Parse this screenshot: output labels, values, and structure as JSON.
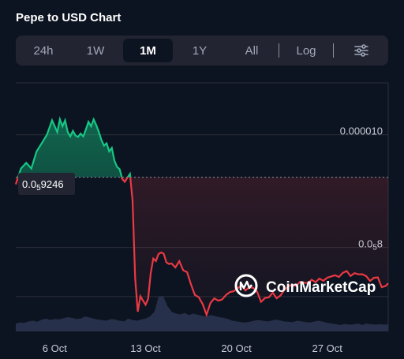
{
  "title": "Pepe to USD Chart",
  "tabs": [
    {
      "label": "24h",
      "active": false
    },
    {
      "label": "1W",
      "active": false
    },
    {
      "label": "1M",
      "active": true
    },
    {
      "label": "1Y",
      "active": false
    },
    {
      "label": "All",
      "active": false
    },
    {
      "label": "Log",
      "active": false
    }
  ],
  "settings_icon": "sliders-icon",
  "current_price": {
    "prefix": "0.0",
    "subscript": "5",
    "suffix": "9246",
    "value": 9.246e-06
  },
  "y_ticks": [
    {
      "prefix": "0.000010",
      "subscript": "",
      "suffix": "",
      "value": 1e-05
    },
    {
      "prefix": "0.0",
      "subscript": "5",
      "suffix": "8",
      "value": 8e-06
    }
  ],
  "watermark": "CoinMarketCap",
  "colors": {
    "up": "#16c784",
    "down": "#ea3943",
    "volume": "#27304a",
    "background": "#0d1421"
  },
  "chart_data": {
    "type": "line",
    "x_ticks": [
      "6 Oct",
      "13 Oct",
      "20 Oct",
      "27 Oct"
    ],
    "x_tick_values": [
      3,
      10,
      17,
      24
    ],
    "x_range": [
      0,
      28.7
    ],
    "ylim": [
      6.51e-06,
      1.092e-05
    ],
    "baseline": 9.246e-06,
    "grid": true,
    "series": [
      {
        "x": [
          0,
          0.4,
          0.8,
          1.2,
          1.6,
          2.0,
          2.4,
          2.8,
          3.2,
          3.4,
          3.6,
          3.8,
          4.0,
          4.2,
          4.4,
          4.6,
          4.8,
          5.0,
          5.2,
          5.4,
          5.6,
          5.8,
          6.0,
          6.2,
          6.4,
          6.6,
          6.8,
          7.0,
          7.2,
          7.4,
          7.6,
          7.8,
          8.0,
          8.2,
          8.4,
          8.6,
          8.8,
          9.0,
          9.2,
          9.4,
          9.6,
          9.8,
          10.0,
          10.2,
          10.4,
          10.6,
          10.8,
          11.0,
          11.2,
          11.4,
          11.6,
          11.8,
          12.0,
          12.3,
          12.6,
          12.9,
          13.2,
          13.5,
          13.8,
          14.1,
          14.4,
          14.7,
          15.0,
          15.3,
          15.6,
          15.9,
          16.2,
          16.5,
          16.8,
          17.1,
          17.4,
          17.7,
          18.0,
          18.3,
          18.6,
          18.9,
          19.2,
          19.5,
          19.8,
          20.1,
          20.4,
          20.7,
          21.0,
          21.3,
          21.6,
          21.9,
          22.2,
          22.5,
          22.8,
          23.1,
          23.4,
          23.7,
          24.0,
          24.3,
          24.6,
          24.9,
          25.2,
          25.5,
          25.8,
          26.1,
          26.4,
          26.7,
          27.0,
          27.3,
          27.6,
          27.9,
          28.2,
          28.5,
          28.7
        ],
        "values": [
          9.12e-06,
          9.4e-06,
          9.5e-06,
          9.4e-06,
          9.7e-06,
          9.847e-06,
          1e-05,
          1.0255e-05,
          1.0047e-05,
          1.0275e-05,
          1.0149e-05,
          1.0255e-05,
          1.0047e-05,
          9.969e-06,
          1.0067e-05,
          9.985e-06,
          9.959e-06,
          1.002e-05,
          9.969e-06,
          1.0091e-05,
          1.0229e-05,
          1.0149e-05,
          1.027e-05,
          1.017e-05,
          1.0047e-05,
          9.908e-06,
          9.806e-06,
          9.847e-06,
          9.704e-06,
          9.765e-06,
          9.541e-06,
          9.429e-06,
          9.388e-06,
          9.215e-06,
          9.164e-06,
          9.235e-06,
          9.303e-06,
          8.827e-06,
          7.451e-06,
          6.859e-06,
          7.135e-06,
          7.057e-06,
          6.982e-06,
          7.086e-06,
          7.542e-06,
          7.802e-06,
          7.757e-06,
          7.884e-06,
          7.91e-06,
          7.888e-06,
          7.736e-06,
          7.705e-06,
          7.715e-06,
          7.644e-06,
          7.756e-06,
          7.593e-06,
          7.562e-06,
          7.344e-06,
          7.155e-06,
          7.116e-06,
          6.995e-06,
          6.805e-06,
          7.014e-06,
          7.095e-06,
          7.054e-06,
          7.076e-06,
          7.156e-06,
          7.207e-06,
          7.222e-06,
          7.276e-06,
          7.325e-06,
          7.235e-06,
          7.296e-06,
          7.282e-06,
          7.212e-06,
          7.033e-06,
          7.102e-06,
          7.113e-06,
          7.198e-06,
          7.097e-06,
          7.147e-06,
          7.247e-06,
          7.308e-06,
          7.339e-06,
          7.316e-06,
          7.388e-06,
          7.375e-06,
          7.367e-06,
          7.425e-06,
          7.384e-06,
          7.446e-06,
          7.408e-06,
          7.462e-06,
          7.484e-06,
          7.505e-06,
          7.474e-06,
          7.548e-06,
          7.581e-06,
          7.492e-06,
          7.543e-06,
          7.522e-06,
          7.524e-06,
          7.491e-06,
          7.404e-06,
          7.46e-06,
          7.468e-06,
          7.294e-06,
          7.317e-06,
          7.363e-06
        ]
      }
    ],
    "volume_relative": [
      0.22,
      0.25,
      0.24,
      0.28,
      0.3,
      0.27,
      0.33,
      0.36,
      0.32,
      0.35,
      0.34,
      0.37,
      0.4,
      0.38,
      0.35,
      0.36,
      0.42,
      0.39,
      0.36,
      0.33,
      0.32,
      0.3,
      0.35,
      0.33,
      0.3,
      0.28,
      0.36,
      0.32,
      0.3,
      0.34,
      0.36,
      0.42,
      0.55,
      0.98,
      1.0,
      0.72,
      0.55,
      0.5,
      0.48,
      0.52,
      0.46,
      0.5,
      0.47,
      0.44,
      0.42,
      0.46,
      0.43,
      0.4,
      0.38,
      0.35,
      0.3,
      0.28,
      0.26,
      0.25,
      0.27,
      0.3,
      0.32,
      0.3,
      0.28,
      0.3,
      0.33,
      0.31,
      0.28,
      0.27,
      0.26,
      0.3,
      0.28,
      0.26,
      0.25,
      0.28,
      0.3,
      0.27,
      0.24,
      0.22,
      0.2,
      0.18,
      0.21,
      0.19,
      0.2,
      0.22,
      0.18,
      0.22,
      0.2,
      0.19,
      0.2,
      0.19,
      0.2
    ]
  }
}
